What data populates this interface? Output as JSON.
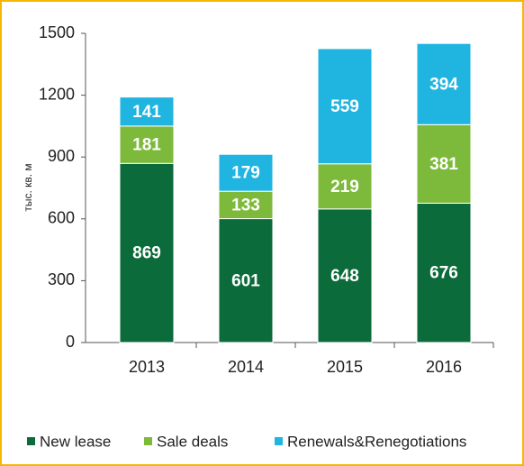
{
  "chart_data": {
    "type": "stacked_bar",
    "y_axis_label": "тыс. кв. м",
    "categories": [
      "2013",
      "2014",
      "2015",
      "2016"
    ],
    "series": [
      {
        "name": "New lease",
        "color": "#0b6b3a",
        "values": [
          869,
          601,
          648,
          676
        ]
      },
      {
        "name": "Sale deals",
        "color": "#7dba3c",
        "values": [
          181,
          133,
          219,
          381
        ]
      },
      {
        "name": "Renewals&Renegotiations",
        "color": "#1fb5e0",
        "values": [
          141,
          179,
          559,
          394
        ]
      }
    ],
    "ylim": [
      0,
      1500
    ],
    "yticks": [
      0,
      300,
      600,
      900,
      1200,
      1500
    ],
    "grid": false,
    "legend": "bottom"
  }
}
